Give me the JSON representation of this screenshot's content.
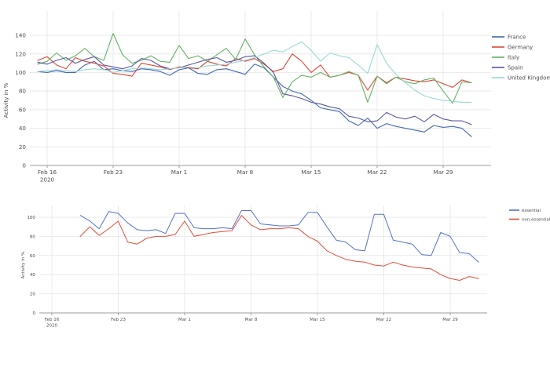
{
  "page": {
    "background": "#ffffff"
  },
  "chart_data": [
    {
      "id": "country-activity",
      "type": "line",
      "title": "",
      "xlabel": "",
      "ylabel": "Activity in %",
      "ylim": [
        0,
        150
      ],
      "yticks": [
        0,
        20,
        40,
        60,
        80,
        100,
        120,
        140
      ],
      "xticks": [
        "Feb 16",
        "Feb 23",
        "Mar 1",
        "Mar 8",
        "Mar 15",
        "Mar 22",
        "Mar 29"
      ],
      "xtick_sub": "2020",
      "grid": true,
      "legend_position": "top-right",
      "x": [
        "Feb 15",
        "Feb 16",
        "Feb 17",
        "Feb 18",
        "Feb 19",
        "Feb 20",
        "Feb 21",
        "Feb 22",
        "Feb 23",
        "Feb 24",
        "Feb 25",
        "Feb 26",
        "Feb 27",
        "Feb 28",
        "Feb 29",
        "Mar 1",
        "Mar 2",
        "Mar 3",
        "Mar 4",
        "Mar 5",
        "Mar 6",
        "Mar 7",
        "Mar 8",
        "Mar 9",
        "Mar 10",
        "Mar 11",
        "Mar 12",
        "Mar 13",
        "Mar 14",
        "Mar 15",
        "Mar 16",
        "Mar 17",
        "Mar 18",
        "Mar 19",
        "Mar 20",
        "Mar 21",
        "Mar 22",
        "Mar 23",
        "Mar 24",
        "Mar 25",
        "Mar 26",
        "Mar 27",
        "Mar 28",
        "Mar 29",
        "Mar 30",
        "Mar 31",
        "Apr 1"
      ],
      "series": [
        {
          "name": "France",
          "color": "#4268b3",
          "values": [
            101,
            100,
            102,
            100,
            100,
            108,
            112,
            103,
            104,
            102,
            101,
            104,
            103,
            101,
            97,
            103,
            105,
            99,
            98,
            103,
            104,
            101,
            98,
            109,
            105,
            95,
            85,
            80,
            77,
            70,
            62,
            60,
            58,
            48,
            43,
            51,
            40,
            45,
            42,
            40,
            38,
            36,
            43,
            41,
            42,
            40,
            31
          ]
        },
        {
          "name": "Germany",
          "color": "#e04438",
          "values": [
            113,
            117,
            108,
            104,
            116,
            112,
            110,
            107,
            99,
            98,
            96,
            110,
            108,
            106,
            103,
            106,
            105,
            104,
            112,
            109,
            107,
            115,
            112,
            115,
            109,
            101,
            104,
            120,
            112,
            100,
            108,
            95,
            97,
            100,
            97,
            81,
            96,
            89,
            95,
            93,
            91,
            90,
            92,
            88,
            84,
            92,
            89
          ]
        },
        {
          "name": "Italy",
          "color": "#64b164",
          "values": [
            109,
            112,
            121,
            113,
            118,
            126,
            117,
            113,
            142,
            119,
            110,
            113,
            118,
            112,
            111,
            129,
            115,
            118,
            112,
            119,
            126,
            114,
            136,
            119,
            106,
            95,
            73,
            90,
            97,
            95,
            100,
            95,
            97,
            101,
            97,
            68,
            96,
            88,
            95,
            90,
            88,
            92,
            94,
            80,
            67,
            90,
            89
          ]
        },
        {
          "name": "Spain",
          "color": "#5958a7",
          "values": [
            111,
            109,
            113,
            116,
            110,
            114,
            117,
            108,
            106,
            104,
            107,
            115,
            113,
            107,
            104,
            105,
            108,
            111,
            114,
            116,
            111,
            113,
            117,
            118,
            110,
            100,
            77,
            75,
            72,
            68,
            66,
            63,
            61,
            53,
            51,
            47,
            48,
            57,
            52,
            50,
            53,
            47,
            55,
            50,
            48,
            48,
            44
          ]
        },
        {
          "name": "United Kingdom",
          "color": "#98d9d4",
          "values": [
            101,
            102,
            103,
            102,
            101,
            103,
            104,
            103,
            100,
            102,
            104,
            105,
            104,
            103,
            104,
            105,
            106,
            105,
            107,
            108,
            109,
            111,
            113,
            116,
            120,
            124,
            122,
            128,
            133,
            124,
            112,
            121,
            118,
            116,
            108,
            99,
            130,
            110,
            98,
            89,
            81,
            75,
            72,
            70,
            69,
            68,
            68
          ]
        }
      ]
    },
    {
      "id": "essential-activity",
      "type": "line",
      "title": "",
      "xlabel": "",
      "ylabel": "Activity in %",
      "ylim": [
        0,
        110
      ],
      "yticks": [
        0,
        20,
        40,
        60,
        80,
        100
      ],
      "xticks": [
        "Feb 16",
        "Feb 23",
        "Mar 1",
        "Mar 8",
        "Mar 15",
        "Mar 22",
        "Mar 29"
      ],
      "xtick_sub": "2020",
      "grid": true,
      "legend_position": "top-right",
      "x": [
        "Feb 19",
        "Feb 20",
        "Feb 21",
        "Feb 22",
        "Feb 23",
        "Feb 24",
        "Feb 25",
        "Feb 26",
        "Feb 27",
        "Feb 28",
        "Feb 29",
        "Mar 1",
        "Mar 2",
        "Mar 3",
        "Mar 4",
        "Mar 5",
        "Mar 6",
        "Mar 7",
        "Mar 8",
        "Mar 9",
        "Mar 10",
        "Mar 11",
        "Mar 12",
        "Mar 13",
        "Mar 14",
        "Mar 15",
        "Mar 16",
        "Mar 17",
        "Mar 18",
        "Mar 19",
        "Mar 20",
        "Mar 21",
        "Mar 22",
        "Mar 23",
        "Mar 24",
        "Mar 25",
        "Mar 26",
        "Mar 27",
        "Mar 28",
        "Mar 29",
        "Mar 30",
        "Mar 31",
        "Apr 1"
      ],
      "series": [
        {
          "name": "essential",
          "color": "#5572cc",
          "values": [
            102,
            96,
            88,
            106,
            104,
            94,
            87,
            86,
            87,
            83,
            104,
            104,
            89,
            88,
            88,
            89,
            88,
            107,
            107,
            93,
            92,
            91,
            91,
            92,
            105,
            105,
            90,
            76,
            74,
            66,
            65,
            103,
            103,
            76,
            74,
            72,
            61,
            60,
            84,
            80,
            63,
            62,
            53
          ]
        },
        {
          "name": "non-essential",
          "color": "#e24c3c",
          "values": [
            80,
            90,
            81,
            88,
            96,
            74,
            72,
            78,
            80,
            80,
            82,
            96,
            80,
            82,
            84,
            85,
            86,
            102,
            92,
            87,
            88,
            88,
            89,
            88,
            80,
            75,
            65,
            60,
            56,
            54,
            53,
            50,
            49,
            53,
            50,
            48,
            47,
            46,
            40,
            36,
            34,
            38,
            36
          ]
        }
      ]
    }
  ]
}
